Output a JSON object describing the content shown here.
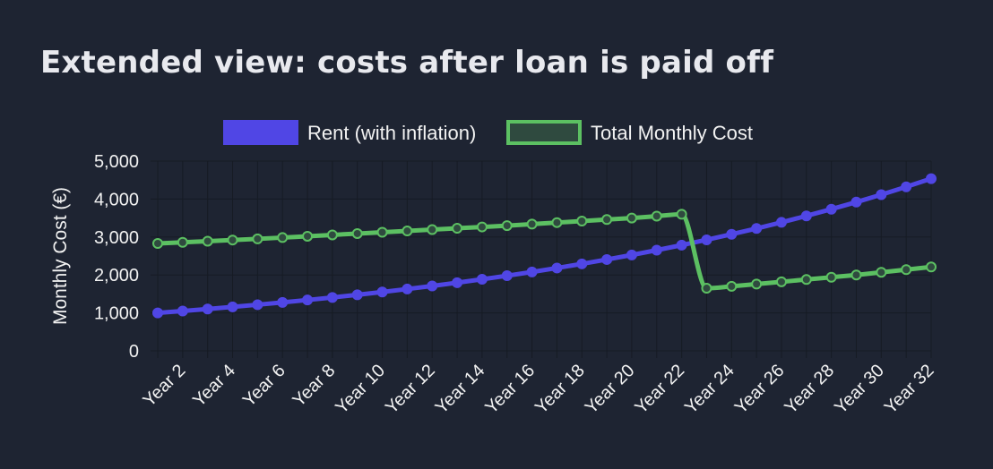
{
  "chart_data": {
    "type": "line",
    "title": "Extended view: costs after loan is paid off",
    "ylabel": "Monthly Cost (€)",
    "xlabel": "",
    "x": [
      1,
      2,
      3,
      4,
      5,
      6,
      7,
      8,
      9,
      10,
      11,
      12,
      13,
      14,
      15,
      16,
      17,
      18,
      19,
      20,
      21,
      22,
      23,
      24,
      25,
      26,
      27,
      28,
      29,
      30,
      31,
      32
    ],
    "x_tick_labels": [
      "Year 2",
      "Year 4",
      "Year 6",
      "Year 8",
      "Year 10",
      "Year 12",
      "Year 14",
      "Year 16",
      "Year 18",
      "Year 20",
      "Year 22",
      "Year 24",
      "Year 26",
      "Year 28",
      "Year 30",
      "Year 32"
    ],
    "x_tick_values": [
      2,
      4,
      6,
      8,
      10,
      12,
      14,
      16,
      18,
      20,
      22,
      24,
      26,
      28,
      30,
      32
    ],
    "ylim": [
      0,
      5000
    ],
    "y_ticks": [
      0,
      1000,
      2000,
      3000,
      4000,
      5000
    ],
    "y_tick_labels": [
      "0",
      "1,000",
      "2,000",
      "3,000",
      "4,000",
      "5,000"
    ],
    "grid": true,
    "legend_position": "top",
    "series": [
      {
        "name": "Rent (with inflation)",
        "color": "#5046e5",
        "fill": "#5046e5",
        "values": [
          1000,
          1050,
          1103,
          1158,
          1216,
          1276,
          1340,
          1407,
          1477,
          1551,
          1629,
          1710,
          1796,
          1886,
          1980,
          2079,
          2183,
          2292,
          2407,
          2527,
          2653,
          2786,
          2925,
          3072,
          3225,
          3386,
          3556,
          3733,
          3920,
          4116,
          4322,
          4538
        ]
      },
      {
        "name": "Total Monthly Cost",
        "color": "#5cc062",
        "fill": "#2f4a3f",
        "values": [
          2830,
          2860,
          2890,
          2920,
          2950,
          2985,
          3020,
          3055,
          3090,
          3125,
          3160,
          3195,
          3230,
          3265,
          3300,
          3340,
          3380,
          3420,
          3460,
          3500,
          3550,
          3600,
          1650,
          1700,
          1760,
          1820,
          1880,
          1940,
          2000,
          2070,
          2140,
          2210
        ]
      }
    ]
  }
}
